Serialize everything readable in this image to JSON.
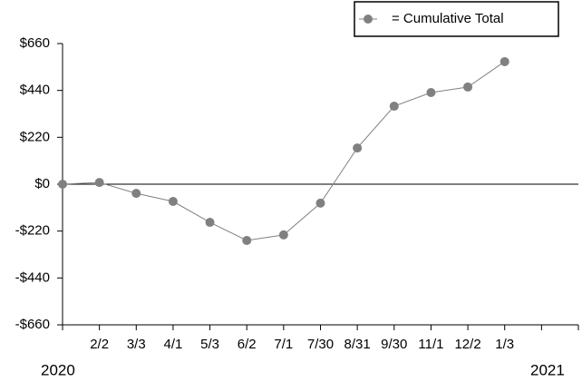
{
  "chart_data": {
    "type": "line",
    "categories": [
      null,
      "2/2",
      "3/3",
      "4/1",
      "5/3",
      "6/2",
      "7/1",
      "7/30",
      "8/31",
      "9/30",
      "11/1",
      "12/2",
      "1/3",
      null,
      null
    ],
    "series": [
      {
        "name": "= Cumulative Total",
        "color": "#808080",
        "values": [
          0,
          8,
          -43,
          -81,
          -179,
          -264,
          -238,
          -89,
          170,
          366,
          430,
          456,
          575,
          null,
          null
        ]
      }
    ],
    "ylim": [
      -660,
      660
    ],
    "yticks": [
      {
        "value": -660,
        "label": "-$660"
      },
      {
        "value": -440,
        "label": "-$440"
      },
      {
        "value": -220,
        "label": "-$220"
      },
      {
        "value": 0,
        "label": "$0"
      },
      {
        "value": 220,
        "label": "$220"
      },
      {
        "value": 440,
        "label": "$440"
      },
      {
        "value": 660,
        "label": "$660"
      }
    ],
    "zero_line": true,
    "legend": "top-right",
    "annotations": [
      "2020",
      "2021"
    ]
  }
}
